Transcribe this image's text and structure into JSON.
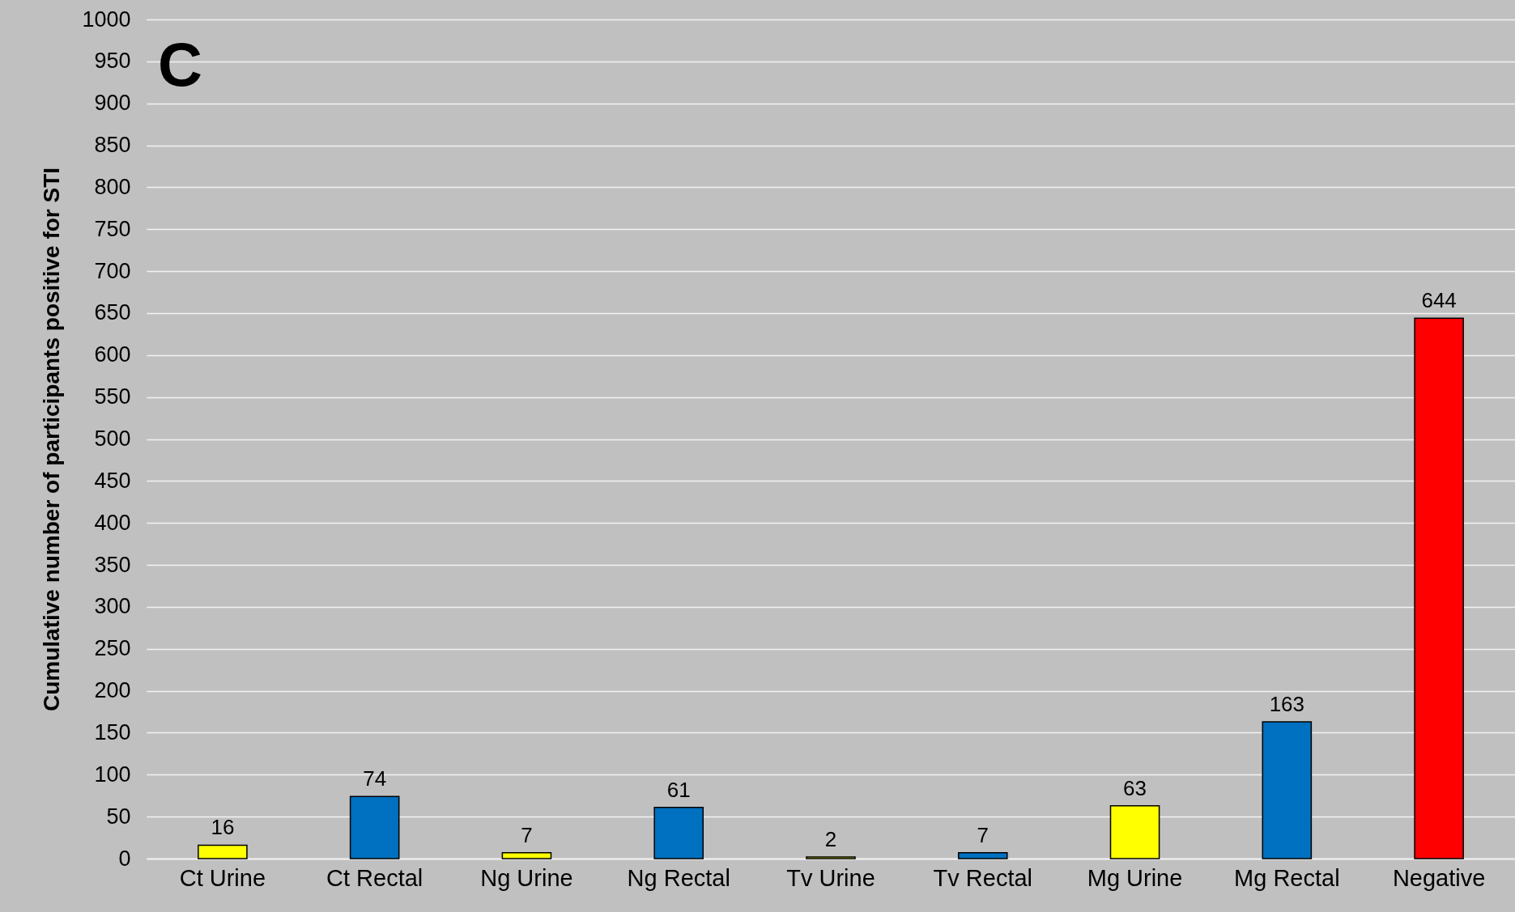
{
  "chart_data": {
    "type": "bar",
    "ylabel": "Cumulative number of participants positive for STI",
    "annotations": [
      "C"
    ],
    "categories": [
      "Ct Urine",
      "Ct Rectal",
      "Ng Urine",
      "Ng Rectal",
      "Tv Urine",
      "Tv Rectal",
      "Mg Urine",
      "Mg Rectal",
      "Negative"
    ],
    "values": [
      16,
      74,
      7,
      61,
      2,
      7,
      63,
      163,
      644
    ],
    "colors": [
      "#ffff00",
      "#0070c0",
      "#ffff00",
      "#0070c0",
      "#ffff00",
      "#0070c0",
      "#ffff00",
      "#0070c0",
      "#ff0000"
    ],
    "ylim": [
      0,
      1000
    ],
    "yticks": [
      0,
      50,
      100,
      150,
      200,
      250,
      300,
      350,
      400,
      450,
      500,
      550,
      600,
      650,
      700,
      750,
      800,
      850,
      900,
      950,
      1000
    ],
    "grid": "y",
    "data_labels": true
  }
}
